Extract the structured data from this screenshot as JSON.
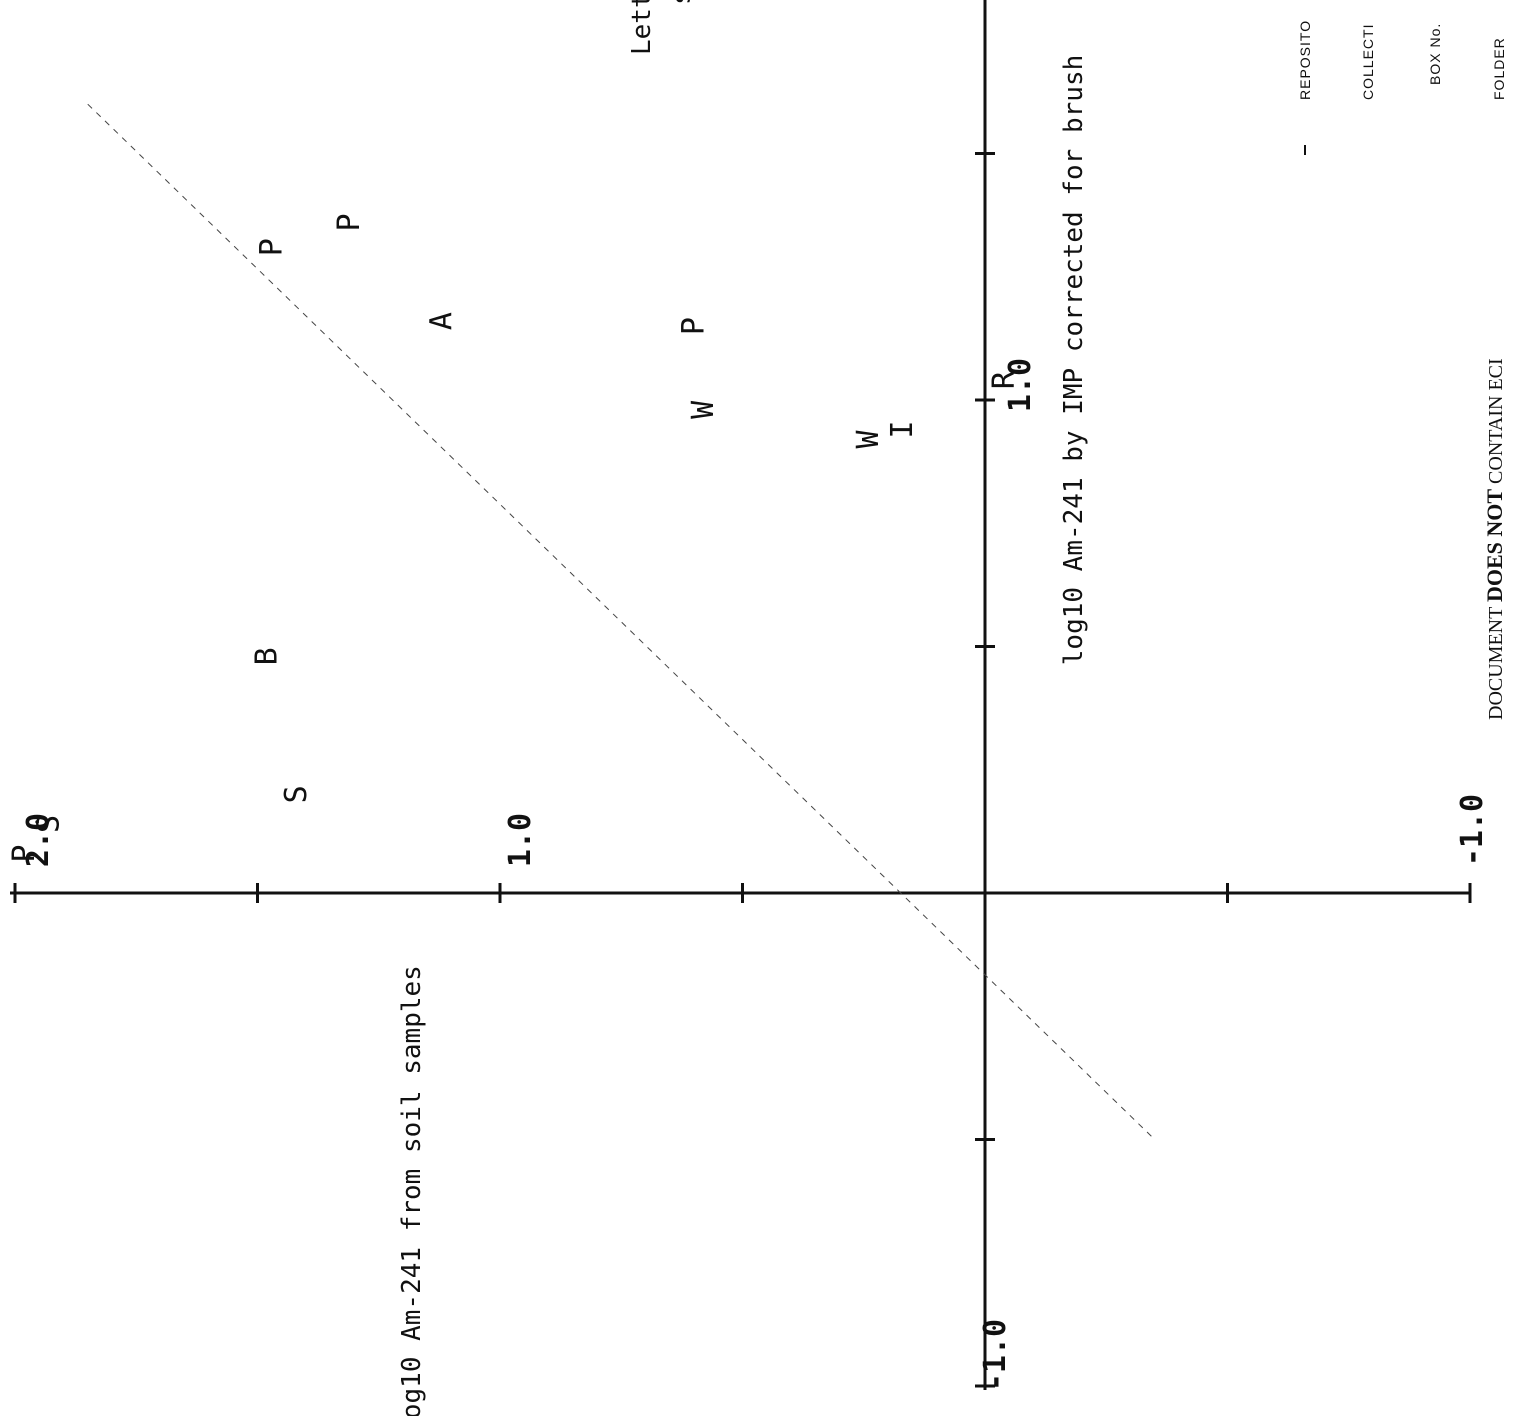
{
  "chart_data": {
    "type": "scatter",
    "title": "",
    "xlabel": "log10 Am-241 from soil samples",
    "ylabel": "log10 Am-241 by IMP corrected for brush",
    "xlim": [
      -1.0,
      2.0
    ],
    "ylim": [
      -1.0,
      1.5
    ],
    "x_ticks": [
      "2.0",
      "1.0",
      "-1.0"
    ],
    "y_ticks": [
      "1.0",
      "-1.0"
    ],
    "fit_line": {
      "style": "dashed",
      "points": [
        [
          1.85,
          1.6
        ],
        [
          -0.35,
          -0.5
        ]
      ]
    },
    "legend_fragment": "Lette",
    "legend_fragment_2": "s",
    "points": [
      {
        "label": "S",
        "x": 1.42,
        "y": 0.2
      },
      {
        "label": "W",
        "x": 0.24,
        "y": 0.92
      },
      {
        "label": "I",
        "x": 0.17,
        "y": 0.94
      },
      {
        "label": "R",
        "x": -0.04,
        "y": 1.04
      },
      {
        "label": "W",
        "x": 0.58,
        "y": 0.98
      },
      {
        "label": "S",
        "x": 1.93,
        "y": 0.14
      },
      {
        "label": "P",
        "x": 1.98,
        "y": 0.08
      },
      {
        "label": "B",
        "x": 1.48,
        "y": 0.48
      },
      {
        "label": "A",
        "x": 1.12,
        "y": 1.16
      },
      {
        "label": "P",
        "x": 1.47,
        "y": 1.31
      },
      {
        "label": "P",
        "x": 1.31,
        "y": 1.36
      },
      {
        "label": "P",
        "x": 0.6,
        "y": 1.15
      }
    ]
  },
  "annotations": {
    "doc_stamp_prefix": "DOCUMENT ",
    "doc_stamp_bold": "DOES NOT",
    "doc_stamp_suffix": " CONTAIN ECI",
    "form_labels": [
      "REPOSITO",
      "COLLECTI",
      "BOX No.",
      "FOLDER"
    ]
  }
}
